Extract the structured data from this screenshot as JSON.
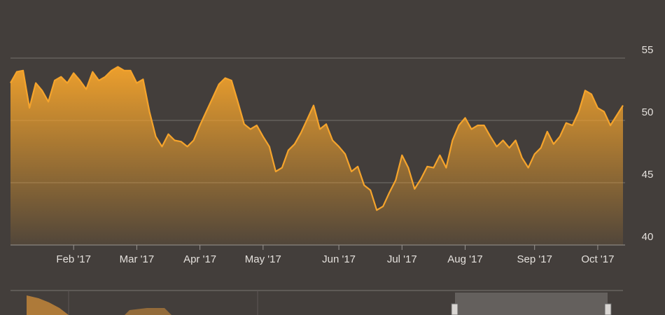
{
  "chart_data": {
    "type": "area",
    "categories": [
      null,
      null,
      null,
      null,
      null,
      null,
      null,
      null,
      null,
      null,
      "Feb '17",
      null,
      null,
      null,
      null,
      null,
      null,
      null,
      null,
      null,
      "Mar '17",
      null,
      null,
      null,
      null,
      null,
      null,
      null,
      null,
      null,
      "Apr '17",
      null,
      null,
      null,
      null,
      null,
      null,
      null,
      null,
      null,
      "May '17",
      null,
      null,
      null,
      null,
      null,
      null,
      null,
      null,
      null,
      null,
      null,
      "Jun '17",
      null,
      null,
      null,
      null,
      null,
      null,
      null,
      null,
      null,
      "Jul '17",
      null,
      null,
      null,
      null,
      null,
      null,
      null,
      null,
      null,
      "Aug '17",
      null,
      null,
      null,
      null,
      null,
      null,
      null,
      null,
      null,
      null,
      "Sep '17",
      null,
      null,
      null,
      null,
      null,
      null,
      null,
      null,
      null,
      "Oct '17",
      null,
      null,
      null,
      null
    ],
    "values": [
      53.0,
      53.9,
      54.0,
      51.0,
      53.0,
      52.4,
      51.5,
      53.2,
      53.5,
      53.0,
      53.8,
      53.2,
      52.5,
      53.9,
      53.2,
      53.5,
      54.0,
      54.3,
      54.0,
      54.0,
      53.0,
      53.3,
      50.7,
      48.7,
      47.9,
      48.9,
      48.4,
      48.3,
      47.9,
      48.4,
      49.6,
      50.7,
      51.8,
      52.9,
      53.4,
      53.2,
      51.5,
      49.7,
      49.3,
      49.6,
      48.7,
      47.9,
      45.9,
      46.2,
      47.6,
      48.1,
      49.0,
      50.1,
      51.2,
      49.3,
      49.7,
      48.4,
      47.9,
      47.3,
      45.9,
      46.3,
      44.8,
      44.4,
      42.8,
      43.1,
      44.2,
      45.2,
      47.2,
      46.2,
      44.5,
      45.3,
      46.3,
      46.2,
      47.2,
      46.2,
      48.4,
      49.6,
      50.2,
      49.3,
      49.6,
      49.6,
      48.7,
      47.9,
      48.4,
      47.8,
      48.4,
      47.0,
      46.2,
      47.3,
      47.8,
      49.1,
      48.1,
      48.7,
      49.8,
      49.6,
      50.7,
      52.4,
      52.1,
      51.0,
      50.7,
      49.6,
      50.4,
      51.2
    ],
    "color": "#f5a42c",
    "ylim": [
      40,
      55
    ],
    "yticks": [
      40,
      45,
      50,
      55
    ],
    "grid": true
  }
}
